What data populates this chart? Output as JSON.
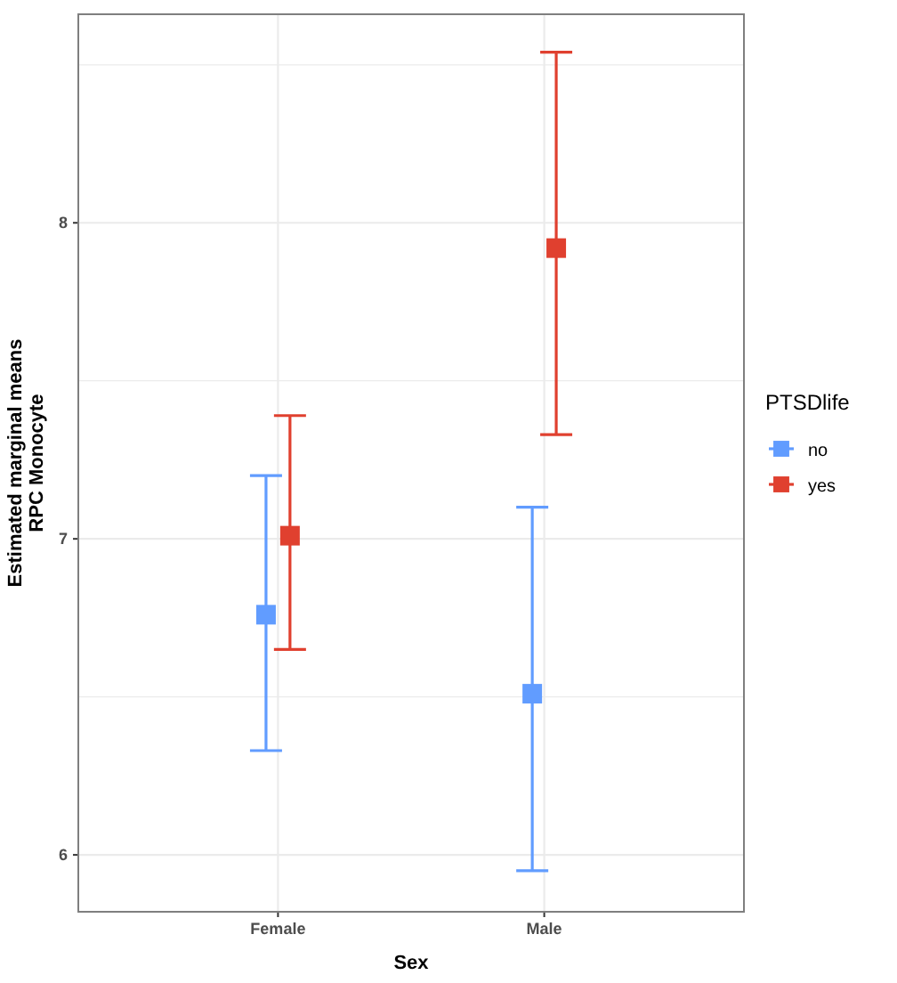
{
  "chart_data": {
    "type": "scatter",
    "xlabel": "Sex",
    "ylabel": "Estimated marginal means\nRPC Monocyte",
    "legend_title": "PTSDlife",
    "categories": [
      "Female",
      "Male"
    ],
    "series": [
      {
        "name": "no",
        "color": "#619cff",
        "values": [
          6.76,
          6.51
        ],
        "errors": [
          [
            6.33,
            7.2
          ],
          [
            5.95,
            7.1
          ]
        ]
      },
      {
        "name": "yes",
        "color": "#e0402f",
        "values": [
          7.01,
          7.92
        ],
        "errors": [
          [
            6.65,
            7.39
          ],
          [
            7.33,
            8.54
          ]
        ]
      }
    ],
    "ylim": [
      5.82,
      8.66
    ],
    "yticks": [
      6,
      {
        "value": 6.5,
        "label": null
      },
      7,
      {
        "value": 7.5,
        "label": null
      },
      8,
      {
        "value": 8.5,
        "label": null
      }
    ],
    "grid": true,
    "legend": "right",
    "marker": "square"
  }
}
